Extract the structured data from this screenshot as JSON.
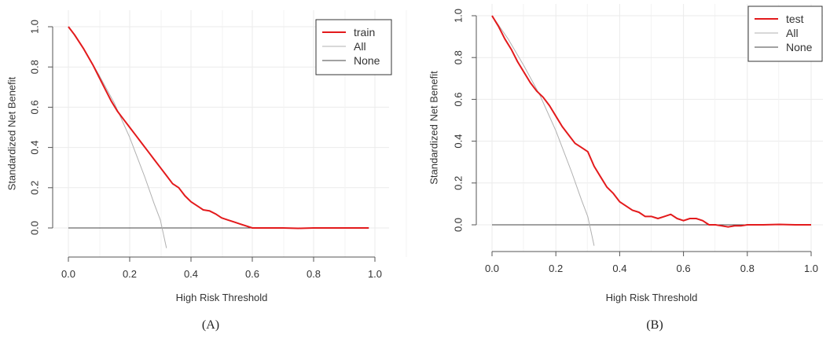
{
  "chart_data": [
    {
      "type": "line",
      "caption": "(A)",
      "xlabel": "High Risk Threshold",
      "ylabel": "Standardized Net Benefit",
      "xlim": [
        0,
        1
      ],
      "ylim": [
        -0.1,
        1.0
      ],
      "xticks": [
        "0.0",
        "0.2",
        "0.4",
        "0.6",
        "0.8",
        "1.0"
      ],
      "yticks": [
        "0.0",
        "0.2",
        "0.4",
        "0.6",
        "0.8",
        "1.0"
      ],
      "grid": true,
      "legend_position": "top-right",
      "series": [
        {
          "name": "train",
          "color": "#e31a1c",
          "x": [
            0,
            0.02,
            0.05,
            0.08,
            0.1,
            0.12,
            0.14,
            0.16,
            0.18,
            0.2,
            0.22,
            0.24,
            0.26,
            0.28,
            0.3,
            0.32,
            0.34,
            0.36,
            0.38,
            0.4,
            0.42,
            0.44,
            0.46,
            0.48,
            0.5,
            0.52,
            0.54,
            0.56,
            0.58,
            0.6,
            0.65,
            0.7,
            0.75,
            0.8,
            0.85,
            0.9,
            0.95,
            0.98
          ],
          "y": [
            1.0,
            0.96,
            0.89,
            0.81,
            0.75,
            0.69,
            0.63,
            0.58,
            0.54,
            0.5,
            0.46,
            0.42,
            0.38,
            0.34,
            0.3,
            0.26,
            0.22,
            0.2,
            0.16,
            0.13,
            0.11,
            0.09,
            0.085,
            0.07,
            0.05,
            0.04,
            0.03,
            0.02,
            0.01,
            0.0,
            0.0,
            0.0,
            -0.002,
            0.0,
            0.0,
            0.0,
            0.0,
            0.0
          ]
        },
        {
          "name": "All",
          "color": "#b0b0b0",
          "x": [
            0,
            0.05,
            0.1,
            0.15,
            0.2,
            0.25,
            0.28,
            0.3,
            0.32
          ],
          "y": [
            1.0,
            0.89,
            0.76,
            0.62,
            0.45,
            0.25,
            0.12,
            0.04,
            -0.1
          ]
        },
        {
          "name": "None",
          "color": "#444444",
          "x": [
            0,
            0.98
          ],
          "y": [
            0,
            0
          ]
        }
      ]
    },
    {
      "type": "line",
      "caption": "(B)",
      "xlabel": "High Risk Threshold",
      "ylabel": "Standardized Net Benefit",
      "xlim": [
        0,
        1
      ],
      "ylim": [
        -0.1,
        1.0
      ],
      "xticks": [
        "0.0",
        "0.2",
        "0.4",
        "0.6",
        "0.8",
        "1.0"
      ],
      "yticks": [
        "0.0",
        "0.2",
        "0.4",
        "0.6",
        "0.8",
        "1.0"
      ],
      "grid": true,
      "legend_position": "top-right",
      "series": [
        {
          "name": "test",
          "color": "#e31a1c",
          "x": [
            0,
            0.02,
            0.04,
            0.06,
            0.08,
            0.1,
            0.12,
            0.14,
            0.16,
            0.18,
            0.2,
            0.22,
            0.24,
            0.26,
            0.28,
            0.3,
            0.32,
            0.34,
            0.36,
            0.38,
            0.4,
            0.42,
            0.44,
            0.46,
            0.48,
            0.5,
            0.52,
            0.54,
            0.56,
            0.58,
            0.6,
            0.62,
            0.64,
            0.66,
            0.68,
            0.7,
            0.72,
            0.74,
            0.76,
            0.78,
            0.8,
            0.85,
            0.9,
            0.95,
            1.0
          ],
          "y": [
            1.0,
            0.95,
            0.89,
            0.84,
            0.78,
            0.73,
            0.68,
            0.64,
            0.61,
            0.57,
            0.52,
            0.47,
            0.43,
            0.39,
            0.37,
            0.35,
            0.28,
            0.23,
            0.18,
            0.15,
            0.11,
            0.09,
            0.07,
            0.06,
            0.04,
            0.04,
            0.03,
            0.04,
            0.05,
            0.03,
            0.02,
            0.03,
            0.03,
            0.02,
            0.0,
            0.0,
            -0.005,
            -0.01,
            -0.005,
            -0.005,
            0.0,
            0.0,
            0.002,
            0.0,
            0.0
          ]
        },
        {
          "name": "All",
          "color": "#b0b0b0",
          "x": [
            0,
            0.05,
            0.1,
            0.15,
            0.2,
            0.25,
            0.28,
            0.3,
            0.32
          ],
          "y": [
            1.0,
            0.89,
            0.76,
            0.62,
            0.45,
            0.25,
            0.12,
            0.04,
            -0.1
          ]
        },
        {
          "name": "None",
          "color": "#444444",
          "x": [
            0,
            1.0
          ],
          "y": [
            0,
            0
          ]
        }
      ]
    }
  ]
}
